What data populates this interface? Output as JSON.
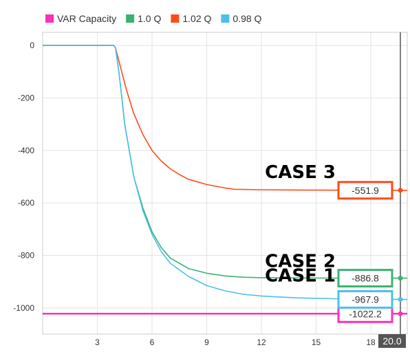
{
  "chart_data": {
    "type": "line",
    "xlim": [
      0,
      20
    ],
    "ylim": [
      -1100,
      50
    ],
    "x_ticks": [
      3,
      6,
      9,
      12,
      15,
      18
    ],
    "y_ticks": [
      0,
      -200,
      -400,
      -600,
      -800,
      -1000
    ],
    "cursor_x_label": "20.0",
    "grid": true,
    "legend_position": "top",
    "series": [
      {
        "name": "VAR Capacity",
        "color": "#ff2fb8",
        "end_label": "-1022.2",
        "x": [
          0,
          20
        ],
        "y": [
          -1022.2,
          -1022.2
        ]
      },
      {
        "name": "1.0 Q",
        "color": "#3bb273",
        "end_label": "-886.8",
        "x": [
          0,
          3.9,
          4.0,
          4.2,
          4.5,
          5,
          5.5,
          6,
          6.5,
          7,
          8,
          9,
          10,
          11,
          12,
          14,
          16,
          18,
          20
        ],
        "y": [
          0,
          0,
          -10,
          -110,
          -300,
          -500,
          -620,
          -710,
          -770,
          -810,
          -850,
          -868,
          -878,
          -883,
          -885,
          -886,
          -886.5,
          -886.8,
          -886.8
        ]
      },
      {
        "name": "1.02 Q",
        "color": "#ff4a1c",
        "end_label": "-551.9",
        "x": [
          0,
          3.9,
          4.0,
          4.3,
          4.6,
          5,
          5.5,
          6,
          6.5,
          7,
          7.5,
          8,
          9,
          10,
          10.5,
          12,
          14,
          16,
          18,
          20
        ],
        "y": [
          0,
          0,
          -10,
          -90,
          -170,
          -260,
          -340,
          -400,
          -440,
          -470,
          -492,
          -510,
          -530,
          -543,
          -548,
          -550,
          -551,
          -551.5,
          -551.9,
          -551.9
        ]
      },
      {
        "name": "0.98 Q",
        "color": "#49c0e8",
        "end_label": "-967.9",
        "x": [
          0,
          3.9,
          4.0,
          4.2,
          4.5,
          5,
          5.5,
          6,
          6.5,
          7,
          8,
          9,
          10,
          11,
          12,
          14,
          16,
          18,
          20
        ],
        "y": [
          0,
          0,
          -10,
          -110,
          -300,
          -500,
          -630,
          -720,
          -785,
          -830,
          -880,
          -915,
          -935,
          -948,
          -955,
          -962,
          -965,
          -967,
          -967.9
        ]
      }
    ],
    "annotations": [
      {
        "text": "CASE 3",
        "series": "1.02 Q"
      },
      {
        "text": "CASE 2",
        "series": "1.0 Q"
      },
      {
        "text": "CASE 1",
        "series": "0.98 Q"
      }
    ]
  }
}
